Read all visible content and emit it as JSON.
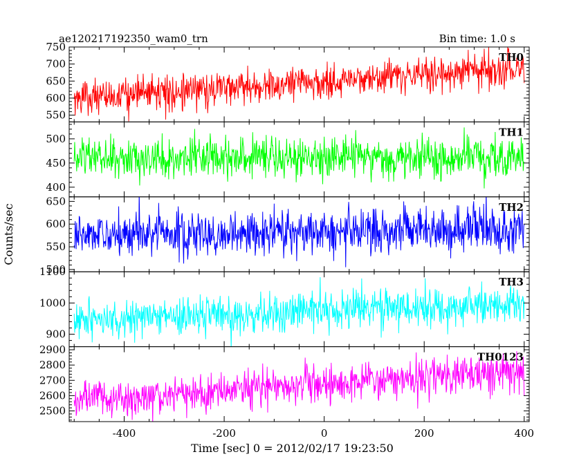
{
  "header": {
    "title": "ae120217192350_wam0_trn",
    "bin_time": "Bin time: 1.0 s"
  },
  "chart_data": {
    "type": "line",
    "title": "ae120217192350_wam0_trn",
    "xlabel": "Time [sec] 0 = 2012/02/17 19:23:50",
    "ylabel": "Counts/sec",
    "xlim": [
      -510,
      410
    ],
    "x_ticks": [
      -400,
      -200,
      0,
      200,
      400
    ],
    "x_range": [
      -500,
      400
    ],
    "bin_time_s": 1.0,
    "grid": false,
    "series": [
      {
        "name": "TH0",
        "color": "#ff0000",
        "ylim": [
          530,
          750
        ],
        "y_ticks": [
          550,
          600,
          650,
          700,
          750
        ],
        "start_mean": 600,
        "end_mean": 690,
        "noise_sigma": 25
      },
      {
        "name": "TH1",
        "color": "#00ff00",
        "ylim": [
          380,
          535
        ],
        "y_ticks": [
          400,
          450,
          500
        ],
        "start_mean": 460,
        "end_mean": 460,
        "noise_sigma": 22
      },
      {
        "name": "TH2",
        "color": "#0000ff",
        "ylim": [
          495,
          660
        ],
        "y_ticks": [
          500,
          550,
          600,
          650
        ],
        "start_mean": 575,
        "end_mean": 590,
        "noise_sigma": 24
      },
      {
        "name": "TH3",
        "color": "#00ffff",
        "ylim": [
          860,
          1100
        ],
        "y_ticks": [
          900,
          1000,
          1100
        ],
        "start_mean": 945,
        "end_mean": 1000,
        "noise_sigma": 30
      },
      {
        "name": "TH0123",
        "color": "#ff00ff",
        "ylim": [
          2430,
          2920
        ],
        "y_ticks": [
          2500,
          2600,
          2700,
          2800,
          2900
        ],
        "start_mean": 2570,
        "end_mean": 2760,
        "noise_sigma": 60
      }
    ]
  }
}
